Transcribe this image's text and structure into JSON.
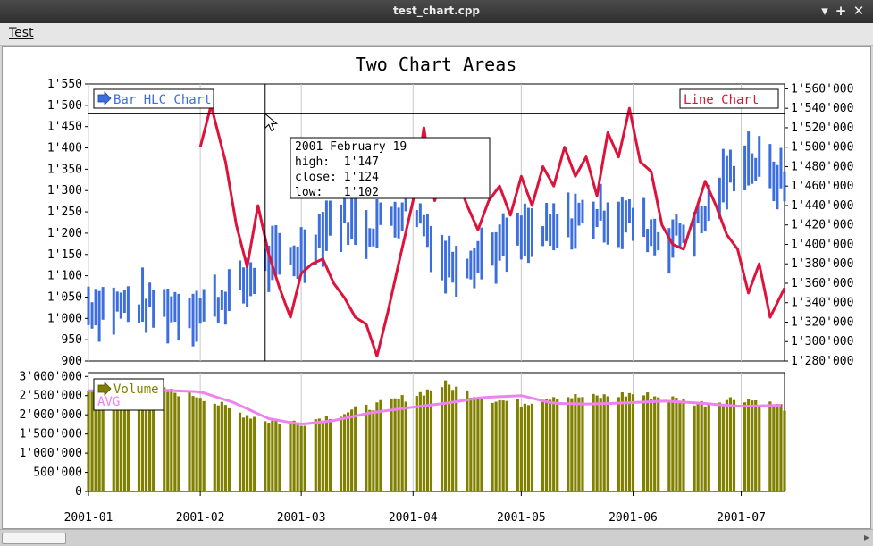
{
  "window": {
    "title": "test_chart.cpp",
    "minimize_glyph": "▾",
    "maximize_glyph": "+",
    "close_glyph": "✕"
  },
  "menu": {
    "test_label": "Test"
  },
  "chart_data": {
    "type": "bar",
    "title": "Two Chart Areas",
    "colors": {
      "hlc": "#3d6ee0",
      "line": "#dc143c",
      "volume": "#808000",
      "avg": "#ee82ee",
      "grid": "#c8c8c8"
    },
    "x_tick_labels": [
      "2001-01",
      "2001-02",
      "2001-03",
      "2001-04",
      "2001-05",
      "2001-06",
      "2001-07"
    ],
    "x_range": [
      "2001-01-01",
      "2001-07-13"
    ],
    "upper_left_axis": {
      "ylim": [
        900,
        1550
      ],
      "ticks": [
        "900",
        "950",
        "1'000",
        "1'050",
        "1'100",
        "1'150",
        "1'200",
        "1'250",
        "1'300",
        "1'350",
        "1'400",
        "1'450",
        "1'500",
        "1'550"
      ]
    },
    "upper_right_axis": {
      "ylim": [
        1280000,
        1565000
      ],
      "ticks": [
        "1'280'000",
        "1'300'000",
        "1'320'000",
        "1'340'000",
        "1'360'000",
        "1'380'000",
        "1'400'000",
        "1'420'000",
        "1'440'000",
        "1'460'000",
        "1'480'000",
        "1'500'000",
        "1'520'000",
        "1'540'000",
        "1'560'000"
      ]
    },
    "lower_axis": {
      "ylim": [
        0,
        3100000
      ],
      "ticks": [
        "0",
        "500'000",
        "1'000'000",
        "1'500'000",
        "2'000'000",
        "2'500'000",
        "3'000'000"
      ]
    },
    "legends": {
      "hlc": "Bar HLC Chart",
      "line": "Line Chart",
      "volume": "Volume",
      "avg": "AVG"
    },
    "tooltip": {
      "date": "2001 February 19",
      "lines": [
        "high:  1'147",
        "close: 1'124",
        "low:   1'102"
      ]
    },
    "crosshair_date": "2001-02-19",
    "crosshair_value": 1480,
    "hlc_anchors": [
      [
        "2001-01-01",
        1030
      ],
      [
        "2001-01-15",
        1030
      ],
      [
        "2001-02-01",
        1020
      ],
      [
        "2001-02-10",
        1060
      ],
      [
        "2001-02-20",
        1130
      ],
      [
        "2001-03-01",
        1150
      ],
      [
        "2001-03-10",
        1240
      ],
      [
        "2001-03-20",
        1210
      ],
      [
        "2001-04-01",
        1270
      ],
      [
        "2001-04-10",
        1130
      ],
      [
        "2001-04-20",
        1150
      ],
      [
        "2001-05-01",
        1190
      ],
      [
        "2001-05-10",
        1200
      ],
      [
        "2001-05-20",
        1250
      ],
      [
        "2001-06-01",
        1230
      ],
      [
        "2001-06-10",
        1180
      ],
      [
        "2001-06-20",
        1230
      ],
      [
        "2001-07-01",
        1380
      ],
      [
        "2001-07-13",
        1320
      ]
    ],
    "line_series": [
      [
        "2001-02-01",
        1500000
      ],
      [
        "2001-02-04",
        1543000
      ],
      [
        "2001-02-08",
        1485000
      ],
      [
        "2001-02-11",
        1420000
      ],
      [
        "2001-02-14",
        1377000
      ],
      [
        "2001-02-17",
        1440000
      ],
      [
        "2001-02-20",
        1390000
      ],
      [
        "2001-02-23",
        1355000
      ],
      [
        "2001-02-26",
        1325000
      ],
      [
        "2001-03-01",
        1370000
      ],
      [
        "2001-03-04",
        1380000
      ],
      [
        "2001-03-07",
        1385000
      ],
      [
        "2001-03-10",
        1360000
      ],
      [
        "2001-03-13",
        1345000
      ],
      [
        "2001-03-16",
        1325000
      ],
      [
        "2001-03-19",
        1318000
      ],
      [
        "2001-03-22",
        1285000
      ],
      [
        "2001-03-25",
        1330000
      ],
      [
        "2001-03-28",
        1380000
      ],
      [
        "2001-04-01",
        1445000
      ],
      [
        "2001-04-04",
        1520000
      ],
      [
        "2001-04-07",
        1445000
      ],
      [
        "2001-04-10",
        1480000
      ],
      [
        "2001-04-13",
        1470000
      ],
      [
        "2001-04-16",
        1440000
      ],
      [
        "2001-04-19",
        1415000
      ],
      [
        "2001-04-22",
        1445000
      ],
      [
        "2001-04-25",
        1460000
      ],
      [
        "2001-04-28",
        1430000
      ],
      [
        "2001-05-01",
        1470000
      ],
      [
        "2001-05-04",
        1440000
      ],
      [
        "2001-05-07",
        1480000
      ],
      [
        "2001-05-10",
        1460000
      ],
      [
        "2001-05-13",
        1500000
      ],
      [
        "2001-05-16",
        1470000
      ],
      [
        "2001-05-19",
        1490000
      ],
      [
        "2001-05-22",
        1450000
      ],
      [
        "2001-05-25",
        1515000
      ],
      [
        "2001-05-28",
        1490000
      ],
      [
        "2001-05-31",
        1540000
      ],
      [
        "2001-06-03",
        1485000
      ],
      [
        "2001-06-06",
        1475000
      ],
      [
        "2001-06-09",
        1420000
      ],
      [
        "2001-06-12",
        1400000
      ],
      [
        "2001-06-15",
        1395000
      ],
      [
        "2001-06-18",
        1430000
      ],
      [
        "2001-06-21",
        1465000
      ],
      [
        "2001-06-24",
        1440000
      ],
      [
        "2001-06-27",
        1410000
      ],
      [
        "2001-06-30",
        1395000
      ],
      [
        "2001-07-03",
        1350000
      ],
      [
        "2001-07-06",
        1380000
      ],
      [
        "2001-07-09",
        1325000
      ],
      [
        "2001-07-13",
        1355000
      ]
    ],
    "volume_anchors": [
      [
        "2001-01-01",
        2600000
      ],
      [
        "2001-01-20",
        2650000
      ],
      [
        "2001-02-01",
        2500000
      ],
      [
        "2001-02-10",
        2100000
      ],
      [
        "2001-02-20",
        1850000
      ],
      [
        "2001-03-01",
        1800000
      ],
      [
        "2001-03-10",
        2000000
      ],
      [
        "2001-03-20",
        2200000
      ],
      [
        "2001-04-01",
        2500000
      ],
      [
        "2001-04-10",
        2800000
      ],
      [
        "2001-04-20",
        2450000
      ],
      [
        "2001-05-01",
        2300000
      ],
      [
        "2001-05-10",
        2500000
      ],
      [
        "2001-05-20",
        2450000
      ],
      [
        "2001-06-01",
        2550000
      ],
      [
        "2001-06-10",
        2450000
      ],
      [
        "2001-06-20",
        2300000
      ],
      [
        "2001-07-01",
        2450000
      ],
      [
        "2001-07-13",
        2200000
      ]
    ],
    "avg_anchors": [
      [
        "2001-01-01",
        2630000
      ],
      [
        "2001-01-20",
        2650000
      ],
      [
        "2001-02-01",
        2600000
      ],
      [
        "2001-02-10",
        2330000
      ],
      [
        "2001-02-20",
        1900000
      ],
      [
        "2001-03-01",
        1750000
      ],
      [
        "2001-03-10",
        1850000
      ],
      [
        "2001-03-20",
        2050000
      ],
      [
        "2001-04-01",
        2200000
      ],
      [
        "2001-04-10",
        2300000
      ],
      [
        "2001-04-20",
        2450000
      ],
      [
        "2001-05-01",
        2500000
      ],
      [
        "2001-05-10",
        2300000
      ],
      [
        "2001-05-20",
        2280000
      ],
      [
        "2001-06-01",
        2320000
      ],
      [
        "2001-06-10",
        2360000
      ],
      [
        "2001-06-20",
        2300000
      ],
      [
        "2001-07-01",
        2220000
      ],
      [
        "2001-07-13",
        2250000
      ]
    ]
  }
}
